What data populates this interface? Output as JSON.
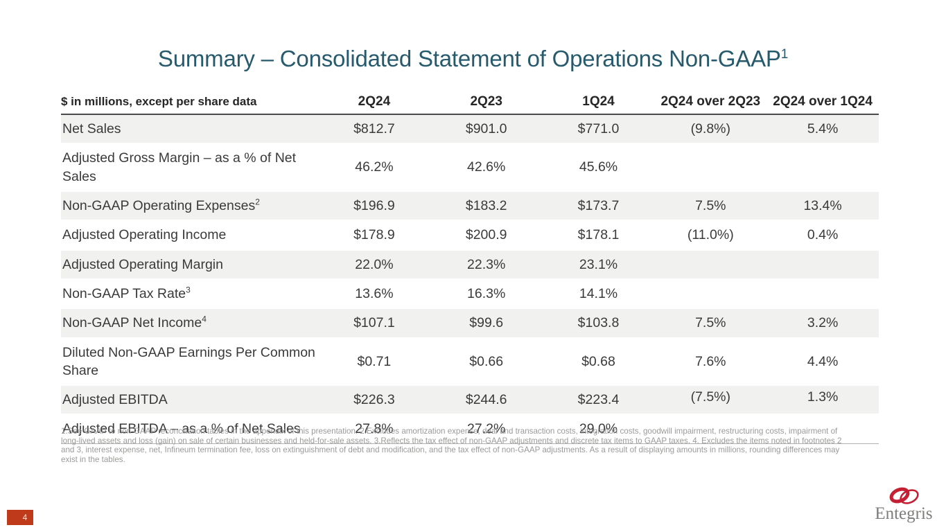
{
  "slide": {
    "title": "Summary – Consolidated Statement of Operations Non-GAAP",
    "title_superscript": "1",
    "page_number": "4",
    "logo_text": "Entegris"
  },
  "colors": {
    "title_teal": "#265a6c",
    "band_gray": "#f1f1ef",
    "header_rule": "#4a4a4a",
    "bottom_rule": "#b0b0b0",
    "page_badge_red": "#be3a1b",
    "logo_red": "#c41f33",
    "logo_gray": "#7f7d7b",
    "footnote_gray": "#9a9a98"
  },
  "table": {
    "header": [
      "$ in millions, except per share data",
      "2Q24",
      "2Q23",
      "1Q24",
      "2Q24 over 2Q23",
      "2Q24 over 1Q24"
    ],
    "rows": [
      {
        "label": "Net Sales",
        "sup": "",
        "values": [
          "$812.7",
          "$901.0",
          "$771.0",
          "(9.8%)",
          "5.4%"
        ]
      },
      {
        "label": "Adjusted Gross Margin – as a % of Net Sales",
        "sup": "",
        "values": [
          "46.2%",
          "42.6%",
          "45.6%",
          "",
          ""
        ]
      },
      {
        "label": "Non-GAAP Operating Expenses",
        "sup": "2",
        "values": [
          "$196.9",
          "$183.2",
          "$173.7",
          "7.5%",
          "13.4%"
        ]
      },
      {
        "label": "Adjusted Operating Income",
        "sup": "",
        "values": [
          "$178.9",
          "$200.9",
          "$178.1",
          "(11.0%)",
          "0.4%"
        ]
      },
      {
        "label": "Adjusted Operating Margin",
        "sup": "",
        "values": [
          "22.0%",
          "22.3%",
          "23.1%",
          "",
          ""
        ]
      },
      {
        "label": "Non-GAAP Tax Rate",
        "sup": "3",
        "values": [
          "13.6%",
          "16.3%",
          "14.1%",
          "",
          ""
        ]
      },
      {
        "label": "Non-GAAP Net Income",
        "sup": "4",
        "values": [
          "$107.1",
          "$99.6",
          "$103.8",
          "7.5%",
          "3.2%"
        ]
      },
      {
        "label": "Diluted Non-GAAP Earnings Per Common Share",
        "sup": "",
        "values": [
          "$0.71",
          "$0.66",
          "$0.68",
          "7.6%",
          "4.4%"
        ]
      },
      {
        "label": "Adjusted EBITDA",
        "sup": "",
        "values": [
          "$226.3",
          "$244.6",
          "$223.4",
          "(7.5%)",
          "1.3%"
        ],
        "raise_change": true
      },
      {
        "label": "Adjusted EBITDA – as a % of Net Sales",
        "sup": "",
        "values": [
          "27.8%",
          "27.2%",
          "29.0%",
          "",
          ""
        ]
      }
    ]
  },
  "footnotes": {
    "text": "1.See GAAP to non-GAAP reconciliation tables in the appendix of this presentation. 2.Excludes amortization expense, deal and transaction costs, integration costs, goodwill impairment, restructuring costs, impairment of long-lived assets and loss (gain) on sale of certain businesses and held-for-sale assets. 3.Reflects the tax effect of non-GAAP adjustments and discrete tax items to GAAP taxes. 4. Excludes the items noted in footnotes 2 and 3, interest expense, net, Infineum termination fee, loss on extinguishment of debt and modification, and the tax effect of non-GAAP adjustments. As a result of displaying amounts in millions, rounding differences may exist in the tables."
  }
}
